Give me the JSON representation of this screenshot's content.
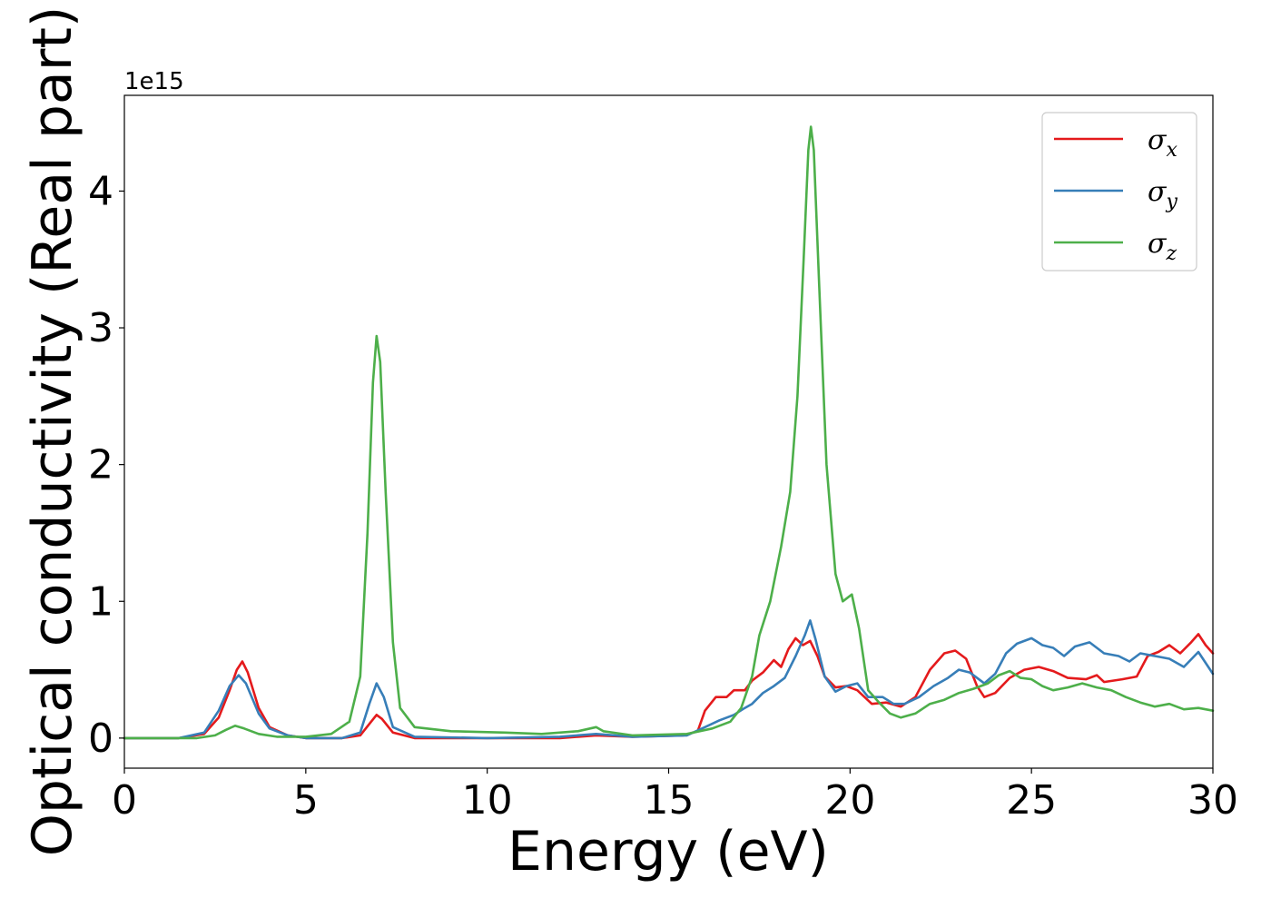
{
  "chart_data": {
    "type": "line",
    "xlabel": "Energy (eV)",
    "ylabel": "Optical conductivity (Real part)",
    "y_offset_label": "1e15",
    "xlim": [
      0,
      30
    ],
    "ylim": [
      -0.22,
      4.7
    ],
    "x_ticks": [
      0,
      5,
      10,
      15,
      20,
      25,
      30
    ],
    "y_ticks": [
      0,
      1,
      2,
      3,
      4
    ],
    "grid": false,
    "legend_position": "top-right",
    "series": [
      {
        "name": "σ_x",
        "color": "#e41a1c",
        "points": [
          [
            0,
            0.0
          ],
          [
            1.5,
            0.0
          ],
          [
            2.2,
            0.03
          ],
          [
            2.6,
            0.15
          ],
          [
            2.9,
            0.35
          ],
          [
            3.1,
            0.5
          ],
          [
            3.25,
            0.56
          ],
          [
            3.4,
            0.48
          ],
          [
            3.7,
            0.22
          ],
          [
            4.0,
            0.08
          ],
          [
            4.5,
            0.02
          ],
          [
            5.0,
            0.0
          ],
          [
            6.0,
            0.0
          ],
          [
            6.5,
            0.02
          ],
          [
            6.8,
            0.12
          ],
          [
            6.95,
            0.17
          ],
          [
            7.1,
            0.14
          ],
          [
            7.4,
            0.04
          ],
          [
            8.0,
            0.0
          ],
          [
            10,
            0.0
          ],
          [
            12,
            0.0
          ],
          [
            13.0,
            0.02
          ],
          [
            14,
            0.01
          ],
          [
            15.4,
            0.02
          ],
          [
            15.8,
            0.05
          ],
          [
            16.0,
            0.2
          ],
          [
            16.3,
            0.3
          ],
          [
            16.6,
            0.3
          ],
          [
            16.8,
            0.35
          ],
          [
            17.1,
            0.35
          ],
          [
            17.3,
            0.42
          ],
          [
            17.6,
            0.48
          ],
          [
            17.9,
            0.57
          ],
          [
            18.1,
            0.52
          ],
          [
            18.3,
            0.65
          ],
          [
            18.5,
            0.73
          ],
          [
            18.7,
            0.68
          ],
          [
            18.9,
            0.71
          ],
          [
            19.1,
            0.6
          ],
          [
            19.3,
            0.45
          ],
          [
            19.6,
            0.37
          ],
          [
            19.9,
            0.38
          ],
          [
            20.2,
            0.35
          ],
          [
            20.6,
            0.25
          ],
          [
            21.0,
            0.26
          ],
          [
            21.4,
            0.23
          ],
          [
            21.8,
            0.3
          ],
          [
            22.2,
            0.5
          ],
          [
            22.6,
            0.62
          ],
          [
            22.9,
            0.64
          ],
          [
            23.2,
            0.58
          ],
          [
            23.5,
            0.38
          ],
          [
            23.7,
            0.3
          ],
          [
            24.0,
            0.33
          ],
          [
            24.4,
            0.44
          ],
          [
            24.8,
            0.5
          ],
          [
            25.2,
            0.52
          ],
          [
            25.6,
            0.49
          ],
          [
            26.0,
            0.44
          ],
          [
            26.5,
            0.43
          ],
          [
            26.8,
            0.46
          ],
          [
            27.0,
            0.41
          ],
          [
            27.5,
            0.43
          ],
          [
            27.9,
            0.45
          ],
          [
            28.2,
            0.6
          ],
          [
            28.5,
            0.63
          ],
          [
            28.8,
            0.68
          ],
          [
            29.1,
            0.62
          ],
          [
            29.4,
            0.7
          ],
          [
            29.6,
            0.76
          ],
          [
            29.8,
            0.68
          ],
          [
            30.0,
            0.62
          ]
        ]
      },
      {
        "name": "σ_y",
        "color": "#377eb8",
        "points": [
          [
            0,
            0.0
          ],
          [
            1.5,
            0.0
          ],
          [
            2.2,
            0.04
          ],
          [
            2.6,
            0.2
          ],
          [
            2.9,
            0.38
          ],
          [
            3.15,
            0.46
          ],
          [
            3.35,
            0.4
          ],
          [
            3.7,
            0.18
          ],
          [
            4.0,
            0.07
          ],
          [
            4.5,
            0.02
          ],
          [
            5.0,
            0.0
          ],
          [
            6.0,
            0.0
          ],
          [
            6.5,
            0.04
          ],
          [
            6.75,
            0.25
          ],
          [
            6.95,
            0.4
          ],
          [
            7.15,
            0.3
          ],
          [
            7.4,
            0.08
          ],
          [
            8.0,
            0.01
          ],
          [
            10,
            0.0
          ],
          [
            12,
            0.01
          ],
          [
            13.0,
            0.03
          ],
          [
            14,
            0.01
          ],
          [
            15.5,
            0.02
          ],
          [
            16.0,
            0.08
          ],
          [
            16.4,
            0.13
          ],
          [
            16.8,
            0.17
          ],
          [
            17.1,
            0.22
          ],
          [
            17.3,
            0.25
          ],
          [
            17.6,
            0.33
          ],
          [
            17.9,
            0.38
          ],
          [
            18.2,
            0.44
          ],
          [
            18.5,
            0.6
          ],
          [
            18.75,
            0.75
          ],
          [
            18.9,
            0.86
          ],
          [
            19.05,
            0.72
          ],
          [
            19.3,
            0.45
          ],
          [
            19.6,
            0.34
          ],
          [
            19.9,
            0.38
          ],
          [
            20.2,
            0.4
          ],
          [
            20.5,
            0.3
          ],
          [
            20.9,
            0.3
          ],
          [
            21.2,
            0.25
          ],
          [
            21.5,
            0.25
          ],
          [
            21.9,
            0.3
          ],
          [
            22.3,
            0.38
          ],
          [
            22.7,
            0.44
          ],
          [
            23.0,
            0.5
          ],
          [
            23.3,
            0.48
          ],
          [
            23.7,
            0.4
          ],
          [
            24.0,
            0.47
          ],
          [
            24.3,
            0.62
          ],
          [
            24.6,
            0.69
          ],
          [
            25.0,
            0.73
          ],
          [
            25.3,
            0.68
          ],
          [
            25.6,
            0.66
          ],
          [
            25.9,
            0.6
          ],
          [
            26.2,
            0.67
          ],
          [
            26.6,
            0.7
          ],
          [
            27.0,
            0.62
          ],
          [
            27.4,
            0.6
          ],
          [
            27.7,
            0.56
          ],
          [
            28.0,
            0.62
          ],
          [
            28.4,
            0.6
          ],
          [
            28.8,
            0.58
          ],
          [
            29.2,
            0.52
          ],
          [
            29.6,
            0.63
          ],
          [
            30.0,
            0.47
          ]
        ]
      },
      {
        "name": "σ_z",
        "color": "#4daf4a",
        "points": [
          [
            0,
            0.0
          ],
          [
            2.0,
            0.0
          ],
          [
            2.5,
            0.02
          ],
          [
            2.8,
            0.06
          ],
          [
            3.05,
            0.09
          ],
          [
            3.3,
            0.07
          ],
          [
            3.7,
            0.03
          ],
          [
            4.2,
            0.01
          ],
          [
            5.0,
            0.01
          ],
          [
            5.7,
            0.03
          ],
          [
            6.2,
            0.12
          ],
          [
            6.5,
            0.45
          ],
          [
            6.7,
            1.5
          ],
          [
            6.85,
            2.6
          ],
          [
            6.95,
            2.94
          ],
          [
            7.05,
            2.75
          ],
          [
            7.2,
            1.8
          ],
          [
            7.4,
            0.7
          ],
          [
            7.6,
            0.22
          ],
          [
            8.0,
            0.08
          ],
          [
            9.0,
            0.05
          ],
          [
            10.5,
            0.04
          ],
          [
            11.5,
            0.03
          ],
          [
            12.5,
            0.05
          ],
          [
            13.0,
            0.08
          ],
          [
            13.2,
            0.05
          ],
          [
            14.0,
            0.02
          ],
          [
            15.5,
            0.03
          ],
          [
            16.2,
            0.07
          ],
          [
            16.7,
            0.12
          ],
          [
            17.0,
            0.22
          ],
          [
            17.3,
            0.45
          ],
          [
            17.5,
            0.75
          ],
          [
            17.8,
            1.0
          ],
          [
            18.1,
            1.4
          ],
          [
            18.35,
            1.8
          ],
          [
            18.55,
            2.5
          ],
          [
            18.72,
            3.5
          ],
          [
            18.85,
            4.3
          ],
          [
            18.92,
            4.47
          ],
          [
            19.0,
            4.3
          ],
          [
            19.15,
            3.3
          ],
          [
            19.35,
            2.0
          ],
          [
            19.6,
            1.2
          ],
          [
            19.8,
            1.0
          ],
          [
            20.05,
            1.05
          ],
          [
            20.25,
            0.8
          ],
          [
            20.5,
            0.35
          ],
          [
            20.8,
            0.26
          ],
          [
            21.1,
            0.18
          ],
          [
            21.4,
            0.15
          ],
          [
            21.8,
            0.18
          ],
          [
            22.2,
            0.25
          ],
          [
            22.6,
            0.28
          ],
          [
            23.0,
            0.33
          ],
          [
            23.4,
            0.36
          ],
          [
            23.8,
            0.4
          ],
          [
            24.1,
            0.46
          ],
          [
            24.4,
            0.49
          ],
          [
            24.7,
            0.44
          ],
          [
            25.0,
            0.43
          ],
          [
            25.3,
            0.38
          ],
          [
            25.6,
            0.35
          ],
          [
            26.0,
            0.37
          ],
          [
            26.4,
            0.4
          ],
          [
            26.8,
            0.37
          ],
          [
            27.2,
            0.35
          ],
          [
            27.6,
            0.3
          ],
          [
            28.0,
            0.26
          ],
          [
            28.4,
            0.23
          ],
          [
            28.8,
            0.25
          ],
          [
            29.2,
            0.21
          ],
          [
            29.6,
            0.22
          ],
          [
            30.0,
            0.2
          ]
        ]
      }
    ]
  }
}
